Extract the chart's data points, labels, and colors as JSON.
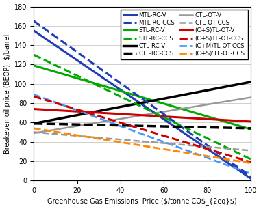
{
  "ylabel": "Breakeven oil price (BEOP), $/barrel",
  "xlim": [
    0,
    100
  ],
  "ylim": [
    0,
    180
  ],
  "xticks": [
    0,
    20,
    40,
    60,
    80,
    100
  ],
  "yticks": [
    0,
    20,
    40,
    60,
    80,
    100,
    120,
    140,
    160,
    180
  ],
  "lines": [
    {
      "label": "MTL-RC-V",
      "color": "#1f3db5",
      "linestyle": "solid",
      "linewidth": 2.2,
      "x": [
        0,
        100
      ],
      "y": [
        155,
        2
      ]
    },
    {
      "label": "STL-RC-V",
      "color": "#00aa00",
      "linestyle": "solid",
      "linewidth": 2.2,
      "x": [
        0,
        100
      ],
      "y": [
        119,
        53
      ]
    },
    {
      "label": "CTL-RC-V",
      "color": "#000000",
      "linestyle": "solid",
      "linewidth": 2.5,
      "x": [
        0,
        100
      ],
      "y": [
        59,
        102
      ]
    },
    {
      "label": "CTL-OT-V",
      "color": "#999999",
      "linestyle": "solid",
      "linewidth": 1.8,
      "x": [
        0,
        100
      ],
      "y": [
        49,
        86
      ]
    },
    {
      "label": "(C+S)TL-OT-V",
      "color": "#cc0000",
      "linestyle": "solid",
      "linewidth": 2.2,
      "x": [
        0,
        100
      ],
      "y": [
        74,
        61
      ]
    },
    {
      "label": "(C+M)TL-OT-CCS",
      "color": "#4499ff",
      "linestyle": "dashed",
      "linewidth": 2.0,
      "x": [
        0,
        100
      ],
      "y": [
        89,
        7
      ]
    },
    {
      "label": "MTL-RC-CCS",
      "color": "#1f3db5",
      "linestyle": "dashed",
      "linewidth": 2.2,
      "x": [
        0,
        100
      ],
      "y": [
        165,
        4
      ]
    },
    {
      "label": "STL-RC-CCS",
      "color": "#00aa00",
      "linestyle": "dashed",
      "linewidth": 2.2,
      "x": [
        0,
        100
      ],
      "y": [
        130,
        22
      ]
    },
    {
      "label": "CTL-RC-CCS",
      "color": "#000000",
      "linestyle": "dashed",
      "linewidth": 2.5,
      "x": [
        0,
        100
      ],
      "y": [
        59,
        54
      ]
    },
    {
      "label": "CTL-OT-CCS",
      "color": "#999999",
      "linestyle": "dashed",
      "linewidth": 1.8,
      "x": [
        0,
        100
      ],
      "y": [
        50,
        31
      ]
    },
    {
      "label": "(C+S)TL-OT-CCS",
      "color": "#cc0000",
      "linestyle": "dashed",
      "linewidth": 2.2,
      "x": [
        0,
        100
      ],
      "y": [
        87,
        19
      ]
    },
    {
      "label": "(C+S)'TL-OT-CCS",
      "color": "#ff8800",
      "linestyle": "dashed",
      "linewidth": 2.0,
      "x": [
        0,
        100
      ],
      "y": [
        54,
        18
      ]
    }
  ],
  "legend_order_col1": [
    0,
    1,
    2,
    3,
    4,
    5
  ],
  "legend_order_col2": [
    6,
    7,
    8,
    9,
    10,
    11
  ],
  "figsize": [
    3.81,
    3.06
  ],
  "dpi": 100
}
